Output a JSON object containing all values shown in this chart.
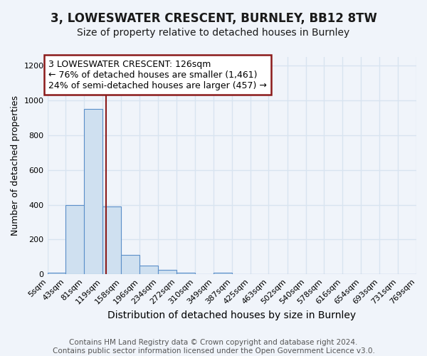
{
  "title": "3, LOWESWATER CRESCENT, BURNLEY, BB12 8TW",
  "subtitle": "Size of property relative to detached houses in Burnley",
  "xlabel": "Distribution of detached houses by size in Burnley",
  "ylabel": "Number of detached properties",
  "bin_edges": [
    5,
    43,
    81,
    119,
    158,
    196,
    234,
    272,
    310,
    349,
    387,
    425,
    463,
    502,
    540,
    578,
    616,
    654,
    693,
    731,
    769
  ],
  "bin_labels": [
    "5sqm",
    "43sqm",
    "81sqm",
    "119sqm",
    "158sqm",
    "196sqm",
    "234sqm",
    "272sqm",
    "310sqm",
    "349sqm",
    "387sqm",
    "425sqm",
    "463sqm",
    "502sqm",
    "540sqm",
    "578sqm",
    "616sqm",
    "654sqm",
    "693sqm",
    "731sqm",
    "769sqm"
  ],
  "counts": [
    10,
    400,
    950,
    390,
    110,
    50,
    25,
    10,
    0,
    10,
    0,
    0,
    0,
    0,
    0,
    0,
    0,
    0,
    0,
    0
  ],
  "bar_color": "#cfe0f0",
  "bar_edge_color": "#5b8fc9",
  "vline_x": 126,
  "vline_color": "#8b1a1a",
  "annotation_text": "3 LOWESWATER CRESCENT: 126sqm\n← 76% of detached houses are smaller (1,461)\n24% of semi-detached houses are larger (457) →",
  "annotation_box_color": "white",
  "annotation_box_edge_color": "#8b1a1a",
  "ylim": [
    0,
    1250
  ],
  "yticks": [
    0,
    200,
    400,
    600,
    800,
    1000,
    1200
  ],
  "footer": "Contains HM Land Registry data © Crown copyright and database right 2024.\nContains public sector information licensed under the Open Government Licence v3.0.",
  "bg_color": "#f0f4fa",
  "grid_color": "#d8e4f0",
  "title_fontsize": 12,
  "subtitle_fontsize": 10,
  "xlabel_fontsize": 10,
  "ylabel_fontsize": 9,
  "tick_fontsize": 8,
  "footer_fontsize": 7.5,
  "ann_fontsize": 9
}
